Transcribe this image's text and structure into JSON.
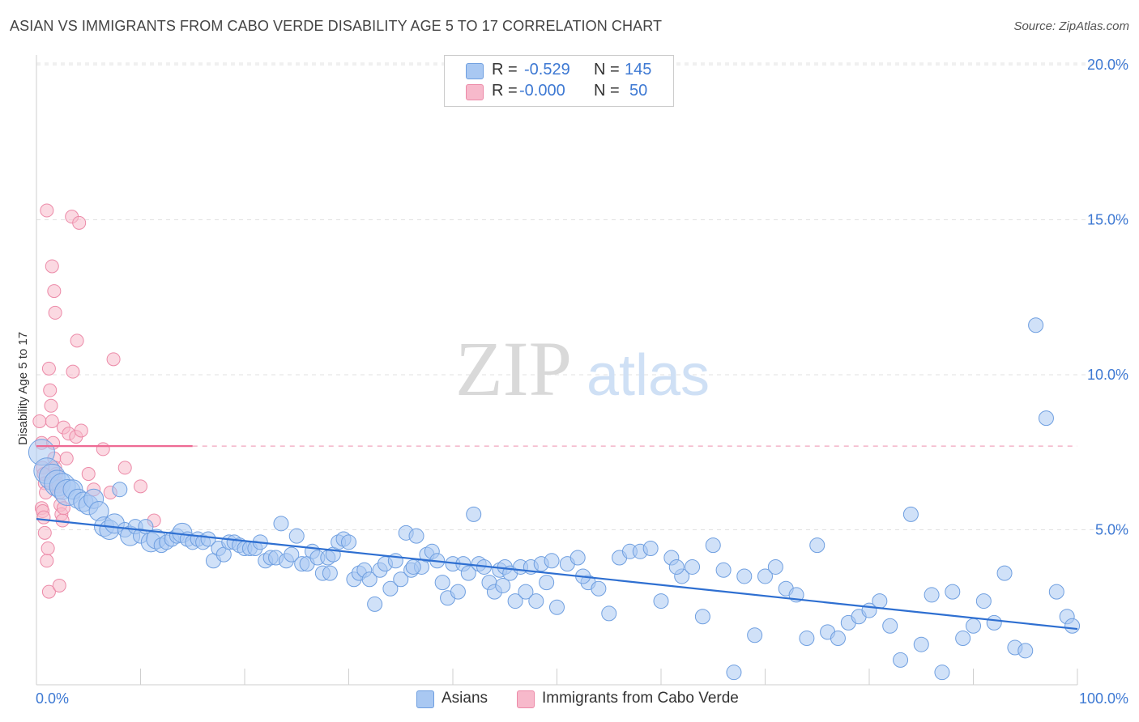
{
  "title": "ASIAN VS IMMIGRANTS FROM CABO VERDE DISABILITY AGE 5 TO 17 CORRELATION CHART",
  "source": "Source: ZipAtlas.com",
  "watermark": {
    "zip": "ZIP",
    "atlas": "atlas"
  },
  "legend_top": {
    "rows": [
      {
        "r_label": "R =",
        "r_value": "-0.529",
        "n_label": "N =",
        "n_value": "145",
        "color": "#a9c8f2"
      },
      {
        "r_label": "R =",
        "r_value": "-0.000",
        "n_label": "N =",
        "n_value": "50",
        "color": "#f7b9cb"
      }
    ]
  },
  "legend_bottom": {
    "series1": "Asians",
    "series2": "Immigrants from Cabo Verde"
  },
  "colors": {
    "blue_fill": "#a9c8f2",
    "blue_stroke": "#6f9fe0",
    "blue_line": "#2e6fd1",
    "pink_fill": "#f7b9cb",
    "pink_stroke": "#ec8aa8",
    "pink_line": "#ee6a94",
    "tick_text": "#3e79d3"
  },
  "chart_data": {
    "type": "scatter",
    "title": "ASIAN VS IMMIGRANTS FROM CABO VERDE DISABILITY AGE 5 TO 17 CORRELATION CHART",
    "xlabel": "",
    "ylabel": "Disability Age 5 to 17",
    "xlim": [
      0,
      100
    ],
    "ylim": [
      0,
      20
    ],
    "x_tick_labels": [
      "0.0%",
      "100.0%"
    ],
    "y_ticks": [
      5,
      10,
      15,
      20
    ],
    "y_tick_labels": [
      "5.0%",
      "10.0%",
      "15.0%",
      "20.0%"
    ],
    "grid": true,
    "series": [
      {
        "name": "Asians",
        "r": -0.529,
        "n": 145,
        "trend": {
          "x": [
            0,
            100
          ],
          "y": [
            5.35,
            1.8
          ]
        },
        "points": [
          [
            0.5,
            7.5,
            3
          ],
          [
            1,
            6.9,
            3
          ],
          [
            1.5,
            6.7,
            3
          ],
          [
            2,
            6.5,
            3
          ],
          [
            2.5,
            6.4,
            3
          ],
          [
            3,
            6.2,
            3
          ],
          [
            3.5,
            6.3,
            2
          ],
          [
            4,
            6.0,
            2
          ],
          [
            4.5,
            5.9,
            2
          ],
          [
            5,
            5.8,
            2
          ],
          [
            5.5,
            6.0,
            2
          ],
          [
            6,
            5.6,
            2
          ],
          [
            6.5,
            5.1,
            2
          ],
          [
            7,
            5.0,
            2
          ],
          [
            7.5,
            5.2,
            2
          ],
          [
            8,
            6.3,
            1
          ],
          [
            8.5,
            5.0,
            1
          ],
          [
            9,
            4.8,
            2
          ],
          [
            9.5,
            5.1,
            1
          ],
          [
            10,
            4.8,
            1
          ],
          [
            10.5,
            5.1,
            1
          ],
          [
            11,
            4.6,
            2
          ],
          [
            11.5,
            4.7,
            2
          ],
          [
            12,
            4.5,
            1
          ],
          [
            12.5,
            4.6,
            1
          ],
          [
            13,
            4.7,
            1
          ],
          [
            13.5,
            4.8,
            1
          ],
          [
            14,
            4.9,
            2
          ],
          [
            14.5,
            4.7,
            1
          ],
          [
            15,
            4.6,
            1
          ],
          [
            15.5,
            4.7,
            1
          ],
          [
            16,
            4.6,
            1
          ],
          [
            16.5,
            4.7,
            1
          ],
          [
            17,
            4.0,
            1
          ],
          [
            17.5,
            4.4,
            1
          ],
          [
            18,
            4.2,
            1
          ],
          [
            18.5,
            4.6,
            1
          ],
          [
            19,
            4.6,
            1
          ],
          [
            19.5,
            4.5,
            1
          ],
          [
            20,
            4.4,
            1
          ],
          [
            20.5,
            4.4,
            1
          ],
          [
            21,
            4.4,
            1
          ],
          [
            21.5,
            4.6,
            1
          ],
          [
            22,
            4.0,
            1
          ],
          [
            22.5,
            4.1,
            1
          ],
          [
            23,
            4.1,
            1
          ],
          [
            23.5,
            5.2,
            1
          ],
          [
            24,
            4.0,
            1
          ],
          [
            24.5,
            4.2,
            1
          ],
          [
            25,
            4.8,
            1
          ],
          [
            25.5,
            3.9,
            1
          ],
          [
            26,
            3.9,
            1
          ],
          [
            26.5,
            4.3,
            1
          ],
          [
            27,
            4.1,
            1
          ],
          [
            27.5,
            3.6,
            1
          ],
          [
            28,
            4.1,
            1
          ],
          [
            28.5,
            4.2,
            1
          ],
          [
            29,
            4.6,
            1
          ],
          [
            29.5,
            4.7,
            1
          ],
          [
            30,
            4.6,
            1
          ],
          [
            30.5,
            3.4,
            1
          ],
          [
            31,
            3.6,
            1
          ],
          [
            31.5,
            3.7,
            1
          ],
          [
            32,
            3.4,
            1
          ],
          [
            32.5,
            2.6,
            1
          ],
          [
            33,
            3.7,
            1
          ],
          [
            33.5,
            3.9,
            1
          ],
          [
            34,
            3.1,
            1
          ],
          [
            34.5,
            4.0,
            1
          ],
          [
            35,
            3.4,
            1
          ],
          [
            35.5,
            4.9,
            1
          ],
          [
            36,
            3.7,
            1
          ],
          [
            36.5,
            4.8,
            1
          ],
          [
            37,
            3.8,
            1
          ],
          [
            37.5,
            4.2,
            1
          ],
          [
            38,
            4.3,
            1
          ],
          [
            38.5,
            4.0,
            1
          ],
          [
            39,
            3.3,
            1
          ],
          [
            39.5,
            2.8,
            1
          ],
          [
            40,
            3.9,
            1
          ],
          [
            40.5,
            3.0,
            1
          ],
          [
            41,
            3.9,
            1
          ],
          [
            41.5,
            3.6,
            1
          ],
          [
            42,
            5.5,
            1
          ],
          [
            42.5,
            3.9,
            1
          ],
          [
            43,
            3.8,
            1
          ],
          [
            43.5,
            3.3,
            1
          ],
          [
            44,
            3.0,
            1
          ],
          [
            44.5,
            3.7,
            1
          ],
          [
            45,
            3.8,
            1
          ],
          [
            45.5,
            3.6,
            1
          ],
          [
            46,
            2.7,
            1
          ],
          [
            46.5,
            3.8,
            1
          ],
          [
            47,
            3.0,
            1
          ],
          [
            47.5,
            3.8,
            1
          ],
          [
            48,
            2.7,
            1
          ],
          [
            48.5,
            3.9,
            1
          ],
          [
            49,
            3.3,
            1
          ],
          [
            49.5,
            4.0,
            1
          ],
          [
            50,
            2.5,
            1
          ],
          [
            51,
            3.9,
            1
          ],
          [
            52,
            4.1,
            1
          ],
          [
            53,
            3.3,
            1
          ],
          [
            54,
            3.1,
            1
          ],
          [
            55,
            2.3,
            1
          ],
          [
            56,
            4.1,
            1
          ],
          [
            57,
            4.3,
            1
          ],
          [
            58,
            4.3,
            1
          ],
          [
            59,
            4.4,
            1
          ],
          [
            60,
            2.7,
            1
          ],
          [
            61,
            4.1,
            1
          ],
          [
            62,
            3.5,
            1
          ],
          [
            63,
            3.8,
            1
          ],
          [
            64,
            2.2,
            1
          ],
          [
            65,
            4.5,
            1
          ],
          [
            66,
            3.7,
            1
          ],
          [
            67,
            0.4,
            1
          ],
          [
            68,
            3.5,
            1
          ],
          [
            69,
            1.6,
            1
          ],
          [
            70,
            3.5,
            1
          ],
          [
            71,
            3.8,
            1
          ],
          [
            72,
            3.1,
            1
          ],
          [
            73,
            2.9,
            1
          ],
          [
            74,
            1.5,
            1
          ],
          [
            75,
            4.5,
            1
          ],
          [
            76,
            1.7,
            1
          ],
          [
            77,
            1.5,
            1
          ],
          [
            78,
            2.0,
            1
          ],
          [
            79,
            2.2,
            1
          ],
          [
            80,
            2.4,
            1
          ],
          [
            81,
            2.7,
            1
          ],
          [
            82,
            1.9,
            1
          ],
          [
            83,
            0.8,
            1
          ],
          [
            84,
            5.5,
            1
          ],
          [
            85,
            1.3,
            1
          ],
          [
            86,
            2.9,
            1
          ],
          [
            87,
            0.4,
            1
          ],
          [
            88,
            3.0,
            1
          ],
          [
            89,
            1.5,
            1
          ],
          [
            90,
            1.9,
            1
          ],
          [
            91,
            2.7,
            1
          ],
          [
            92,
            2.0,
            1
          ],
          [
            93,
            3.6,
            1
          ],
          [
            94,
            1.2,
            1
          ],
          [
            95,
            1.1,
            1
          ],
          [
            96,
            11.6,
            1
          ],
          [
            97,
            8.6,
            1
          ],
          [
            98,
            3.0,
            1
          ],
          [
            99,
            2.2,
            1
          ],
          [
            99.5,
            1.9,
            1
          ],
          [
            28.2,
            3.6,
            1
          ],
          [
            36.2,
            3.8,
            1
          ],
          [
            44.8,
            3.2,
            1
          ],
          [
            52.5,
            3.5,
            1
          ],
          [
            61.5,
            3.8,
            1
          ]
        ]
      },
      {
        "name": "Immigrants from Cabo Verde",
        "r": -0.0,
        "n": 50,
        "trend": {
          "x": [
            0,
            15
          ],
          "y": [
            7.7,
            7.7
          ]
        },
        "trend_dashed": {
          "x": [
            15,
            100
          ],
          "y": [
            7.7,
            7.7
          ]
        },
        "points": [
          [
            0.3,
            8.5
          ],
          [
            0.5,
            7.8
          ],
          [
            0.6,
            7.0
          ],
          [
            0.7,
            6.8
          ],
          [
            0.8,
            6.5
          ],
          [
            0.9,
            6.2
          ],
          [
            0.5,
            5.7
          ],
          [
            0.6,
            5.6
          ],
          [
            0.7,
            5.4
          ],
          [
            0.8,
            4.9
          ],
          [
            1.0,
            4.0
          ],
          [
            1.1,
            4.4
          ],
          [
            1.2,
            3.0
          ],
          [
            1.0,
            15.3
          ],
          [
            1.5,
            13.5
          ],
          [
            1.7,
            12.7
          ],
          [
            1.8,
            12.0
          ],
          [
            1.2,
            10.2
          ],
          [
            1.3,
            9.5
          ],
          [
            1.4,
            9.0
          ],
          [
            1.5,
            8.5
          ],
          [
            1.6,
            7.8
          ],
          [
            1.7,
            7.3
          ],
          [
            1.8,
            7.0
          ],
          [
            1.9,
            6.8
          ],
          [
            2.0,
            6.5
          ],
          [
            2.1,
            6.4
          ],
          [
            2.2,
            6.2
          ],
          [
            2.3,
            5.8
          ],
          [
            2.4,
            5.5
          ],
          [
            2.5,
            5.3
          ],
          [
            2.6,
            5.7
          ],
          [
            2.2,
            3.2
          ],
          [
            3.4,
            15.1
          ],
          [
            4.1,
            14.9
          ],
          [
            3.9,
            11.1
          ],
          [
            3.5,
            10.1
          ],
          [
            2.6,
            8.3
          ],
          [
            3.1,
            8.1
          ],
          [
            3.8,
            8.0
          ],
          [
            4.3,
            8.2
          ],
          [
            6.4,
            7.6
          ],
          [
            2.9,
            7.3
          ],
          [
            5.0,
            6.8
          ],
          [
            5.5,
            6.3
          ],
          [
            7.1,
            6.2
          ],
          [
            7.4,
            10.5
          ],
          [
            8.5,
            7.0
          ],
          [
            10.0,
            6.4
          ],
          [
            11.3,
            5.3
          ]
        ]
      }
    ]
  }
}
